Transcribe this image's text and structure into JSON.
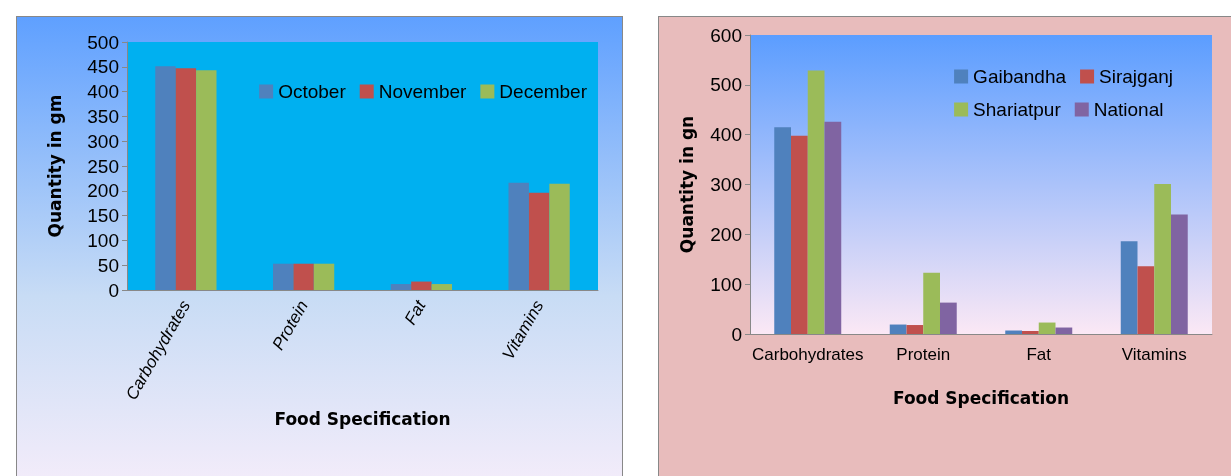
{
  "chart_data": [
    {
      "type": "bar",
      "xlabel": "Food Specification",
      "ylabel": "Quantity in gm",
      "categories": [
        "Carbohydrates",
        "Protein",
        "Fat",
        "Vitamins"
      ],
      "series": [
        {
          "name": "October",
          "color": "#4f81bd",
          "values": [
            451,
            53,
            12,
            216
          ]
        },
        {
          "name": "November",
          "color": "#c0504d",
          "values": [
            447,
            53,
            17,
            196
          ]
        },
        {
          "name": "December",
          "color": "#9bbb59",
          "values": [
            443,
            53,
            12,
            214
          ]
        }
      ],
      "ylim": [
        0,
        500
      ],
      "yticks": [
        0,
        50,
        100,
        150,
        200,
        250,
        300,
        350,
        400,
        450,
        500
      ],
      "legend": "top right"
    },
    {
      "type": "bar",
      "xlabel": "Food Specification",
      "ylabel": "Quantity in gn",
      "categories": [
        "Carbohydrates",
        "Protein",
        "Fat",
        "Vitamins"
      ],
      "series": [
        {
          "name": "Gaibandha",
          "color": "#4f81bd",
          "values": [
            415,
            19,
            7,
            186
          ]
        },
        {
          "name": "Sirajganj",
          "color": "#c0504d",
          "values": [
            398,
            18,
            6,
            136
          ]
        },
        {
          "name": "Shariatpur",
          "color": "#9bbb59",
          "values": [
            529,
            123,
            23,
            301
          ]
        },
        {
          "name": "National",
          "color": "#8064a2",
          "values": [
            426,
            63,
            13,
            240
          ]
        }
      ],
      "ylim": [
        0,
        600
      ],
      "yticks": [
        0,
        100,
        200,
        300,
        400,
        500,
        600
      ],
      "legend": "top right"
    }
  ]
}
